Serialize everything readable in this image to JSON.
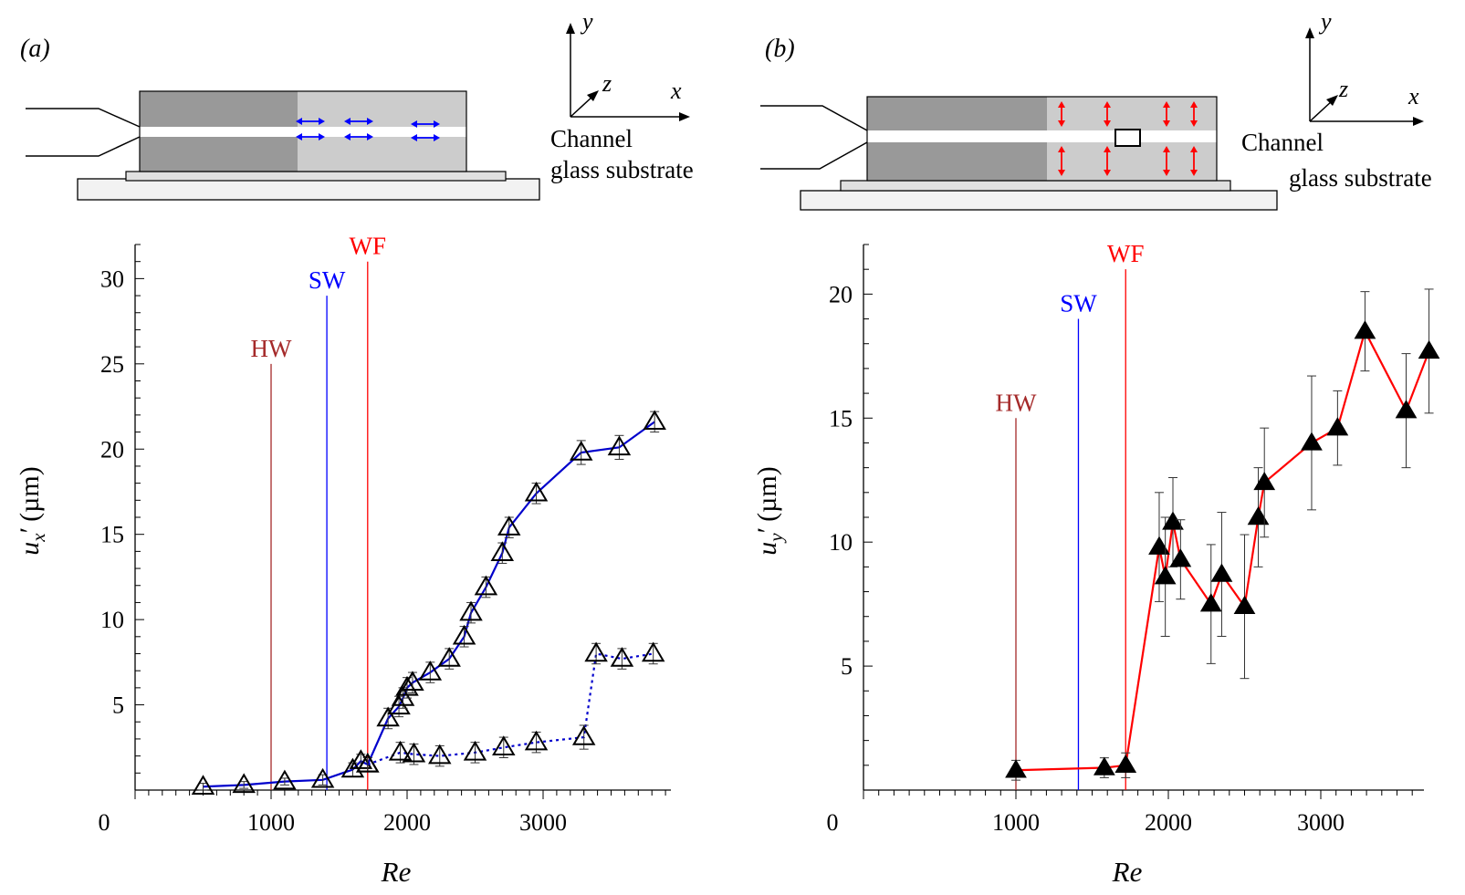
{
  "panels": [
    {
      "label": "(a)",
      "schematic": {
        "axis_y": "y",
        "axis_z": "z",
        "axis_x": "x",
        "caption_line1": "Channel",
        "caption_line2": "glass substrate",
        "arrow_color": "#0000ff"
      },
      "ylabel_main": "u",
      "ylabel_sub": "x",
      "ylabel_prime": "′",
      "ylabel_unit": "(µm)",
      "xlabel": "Re"
    },
    {
      "label": "(b)",
      "schematic": {
        "axis_y": "y",
        "axis_z": "z",
        "axis_x": "x",
        "caption_line1": "Channel",
        "caption_line2": "glass substrate",
        "arrow_color": "#ff0000"
      },
      "ylabel_main": "u",
      "ylabel_sub": "y",
      "ylabel_prime": "′",
      "ylabel_unit": "(µm)",
      "xlabel": "Re"
    }
  ],
  "chart_data": [
    {
      "type": "line",
      "panel": "(a)",
      "xlabel": "Re",
      "ylabel": "u_x′ (µm)",
      "xlim": [
        0,
        3900
      ],
      "ylim": [
        0,
        32
      ],
      "xticks": [
        0,
        1000,
        2000,
        3000
      ],
      "yticks": [
        5,
        10,
        15,
        20,
        25,
        30
      ],
      "vlines": [
        {
          "label": "HW",
          "x": 1000,
          "top": 25,
          "color": "#a52a2a"
        },
        {
          "label": "SW",
          "x": 1410,
          "top": 29,
          "color": "#0000ff"
        },
        {
          "label": "WF",
          "x": 1710,
          "top": 31,
          "color": "#ff0000"
        }
      ],
      "series": [
        {
          "style": "solid",
          "color": "#0000cc",
          "marker": "open-triangle",
          "x": [
            500,
            800,
            1100,
            1380,
            1600,
            1660,
            1710,
            1860,
            1940,
            1970,
            2000,
            2040,
            2170,
            2310,
            2420,
            2470,
            2580,
            2700,
            2750,
            2950,
            3280,
            3560,
            3820
          ],
          "y": [
            0.2,
            0.3,
            0.5,
            0.6,
            1.2,
            1.7,
            1.5,
            4.2,
            4.9,
            5.4,
            6.0,
            6.3,
            6.9,
            7.7,
            9.0,
            10.4,
            11.9,
            13.9,
            15.4,
            17.4,
            19.8,
            20.1,
            21.6
          ],
          "yerr": [
            0.2,
            0.2,
            0.2,
            0.3,
            0.4,
            0.4,
            0.4,
            0.6,
            0.6,
            0.6,
            0.6,
            0.6,
            0.6,
            0.6,
            0.6,
            0.6,
            0.6,
            0.6,
            0.6,
            0.6,
            0.7,
            0.7,
            0.6
          ]
        },
        {
          "style": "dotted",
          "color": "#0000cc",
          "marker": "open-triangle",
          "x": [
            1710,
            1950,
            2050,
            2240,
            2500,
            2710,
            2950,
            3300,
            3390,
            3580,
            3810
          ],
          "y": [
            1.5,
            2.2,
            2.1,
            2.0,
            2.2,
            2.5,
            2.8,
            3.1,
            8.0,
            7.7,
            8.0
          ],
          "yerr": [
            0.4,
            0.6,
            0.6,
            0.6,
            0.6,
            0.6,
            0.6,
            0.7,
            0.6,
            0.6,
            0.6
          ]
        }
      ]
    },
    {
      "type": "line",
      "panel": "(b)",
      "xlabel": "Re",
      "ylabel": "u_y′ (µm)",
      "xlim": [
        0,
        3900
      ],
      "ylim": [
        0,
        22
      ],
      "xticks": [
        0,
        1000,
        2000,
        3000
      ],
      "yticks": [
        5,
        10,
        15,
        20
      ],
      "vlines": [
        {
          "label": "HW",
          "x": 1000,
          "top": 15,
          "color": "#a52a2a"
        },
        {
          "label": "SW",
          "x": 1410,
          "top": 19,
          "color": "#0000ff"
        },
        {
          "label": "WF",
          "x": 1720,
          "top": 21,
          "color": "#ff0000"
        }
      ],
      "series": [
        {
          "style": "solid",
          "color": "#ff0000",
          "marker": "filled-triangle",
          "x": [
            1000,
            1580,
            1720,
            1940,
            1980,
            2030,
            2080,
            2280,
            2350,
            2500,
            2590,
            2630,
            2940,
            3110,
            3290,
            3560,
            3710
          ],
          "y": [
            0.8,
            0.9,
            1.0,
            9.8,
            8.6,
            10.8,
            9.3,
            7.5,
            8.7,
            7.4,
            11.0,
            12.4,
            14.0,
            14.6,
            18.5,
            15.3,
            17.7
          ],
          "yerr": [
            0.4,
            0.4,
            0.5,
            2.2,
            2.4,
            1.8,
            1.6,
            2.4,
            2.5,
            2.9,
            2.0,
            2.2,
            2.7,
            1.5,
            1.6,
            2.3,
            2.5
          ]
        }
      ]
    }
  ]
}
